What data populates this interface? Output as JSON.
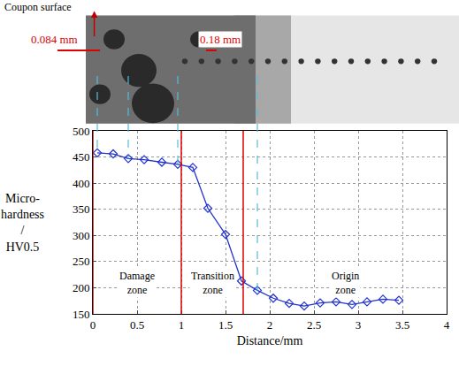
{
  "chart_data": {
    "type": "line",
    "x": [
      0.05,
      0.23,
      0.4,
      0.58,
      0.78,
      0.96,
      1.13,
      1.3,
      1.5,
      1.68,
      1.86,
      2.04,
      2.22,
      2.39,
      2.57,
      2.75,
      2.93,
      3.1,
      3.28,
      3.46
    ],
    "values": [
      458,
      456,
      447,
      445,
      440,
      436,
      430,
      352,
      302,
      213,
      195,
      180,
      170,
      165,
      171,
      173,
      168,
      173,
      178,
      176
    ],
    "color": "#2233cc",
    "marker": "diamond-open",
    "xlabel": "Distance/mm",
    "ylabel": "Micro-hardness / HV0.5",
    "xlim": [
      0,
      4
    ],
    "xticks": [
      0,
      0.5,
      1,
      1.5,
      2,
      2.5,
      3,
      3.5,
      4
    ],
    "ylim": [
      150,
      500
    ],
    "yticks": [
      150,
      200,
      250,
      300,
      350,
      400,
      450,
      500
    ],
    "grid": true,
    "zone_boundaries": [
      0,
      1,
      1.7
    ],
    "zone_labels": [
      "Damage zone",
      "Transition zone",
      "Origin zone"
    ],
    "annotations": [
      {
        "text": "Coupon surface",
        "color": "#000000"
      },
      {
        "text": "0.084 mm",
        "color": "#e00000"
      },
      {
        "text": "0.18 mm",
        "color": "#e00000"
      }
    ]
  }
}
